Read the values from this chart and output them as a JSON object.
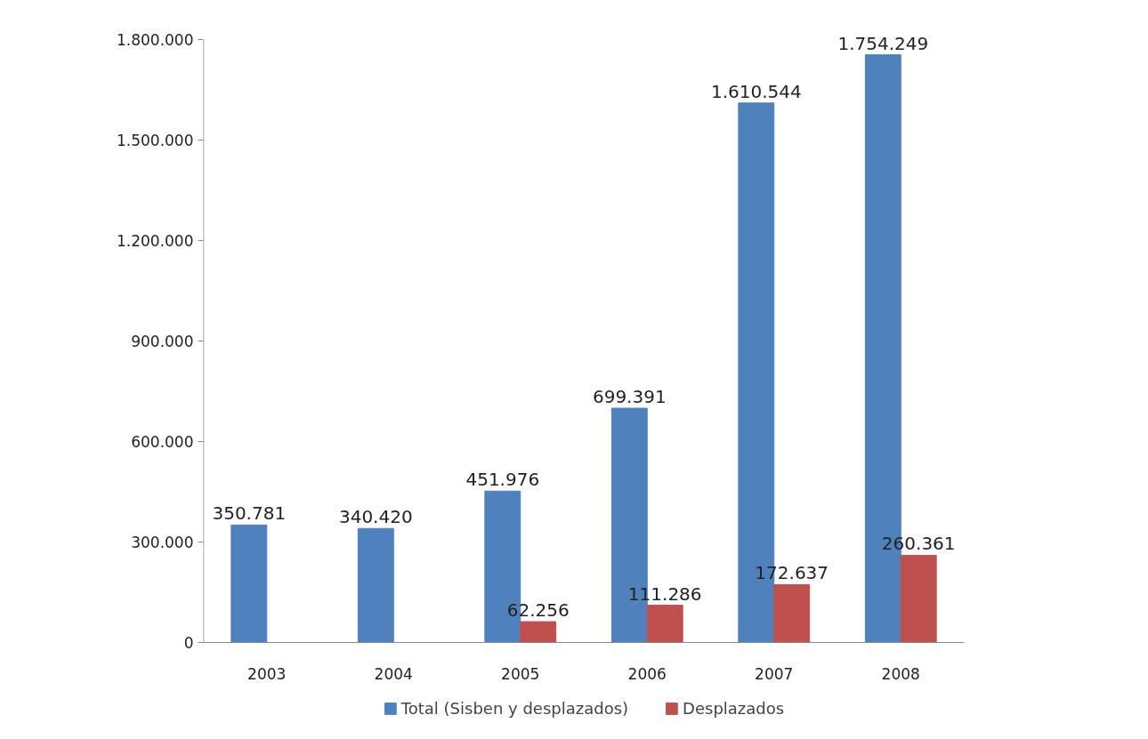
{
  "chart_data": {
    "type": "bar",
    "categories": [
      "2003",
      "2004",
      "2005",
      "2006",
      "2007",
      "2008"
    ],
    "series": [
      {
        "name": "Total (Sisben y desplazados)",
        "color": "#4f81bd",
        "values": [
          350781,
          340420,
          451976,
          699391,
          1610544,
          1754249
        ],
        "value_labels": [
          "350.781",
          "340.420",
          "451.976",
          "699.391",
          "1.610.544",
          "1.754.249"
        ]
      },
      {
        "name": "Desplazados",
        "color": "#c0504d",
        "values": [
          null,
          null,
          62256,
          111286,
          172637,
          260361
        ],
        "value_labels": [
          null,
          null,
          "62.256",
          "111.286",
          "172.637",
          "260.361"
        ]
      }
    ],
    "ylim": [
      0,
      1800000
    ],
    "yticks": [
      {
        "value": 0,
        "label": "0"
      },
      {
        "value": 300000,
        "label": "300.000"
      },
      {
        "value": 600000,
        "label": "600.000"
      },
      {
        "value": 900000,
        "label": "900.000"
      },
      {
        "value": 1200000,
        "label": "1.200.000"
      },
      {
        "value": 1500000,
        "label": "1.500.000"
      },
      {
        "value": 1800000,
        "label": "1.800.000"
      }
    ],
    "grid": false,
    "legend": "bottom"
  }
}
